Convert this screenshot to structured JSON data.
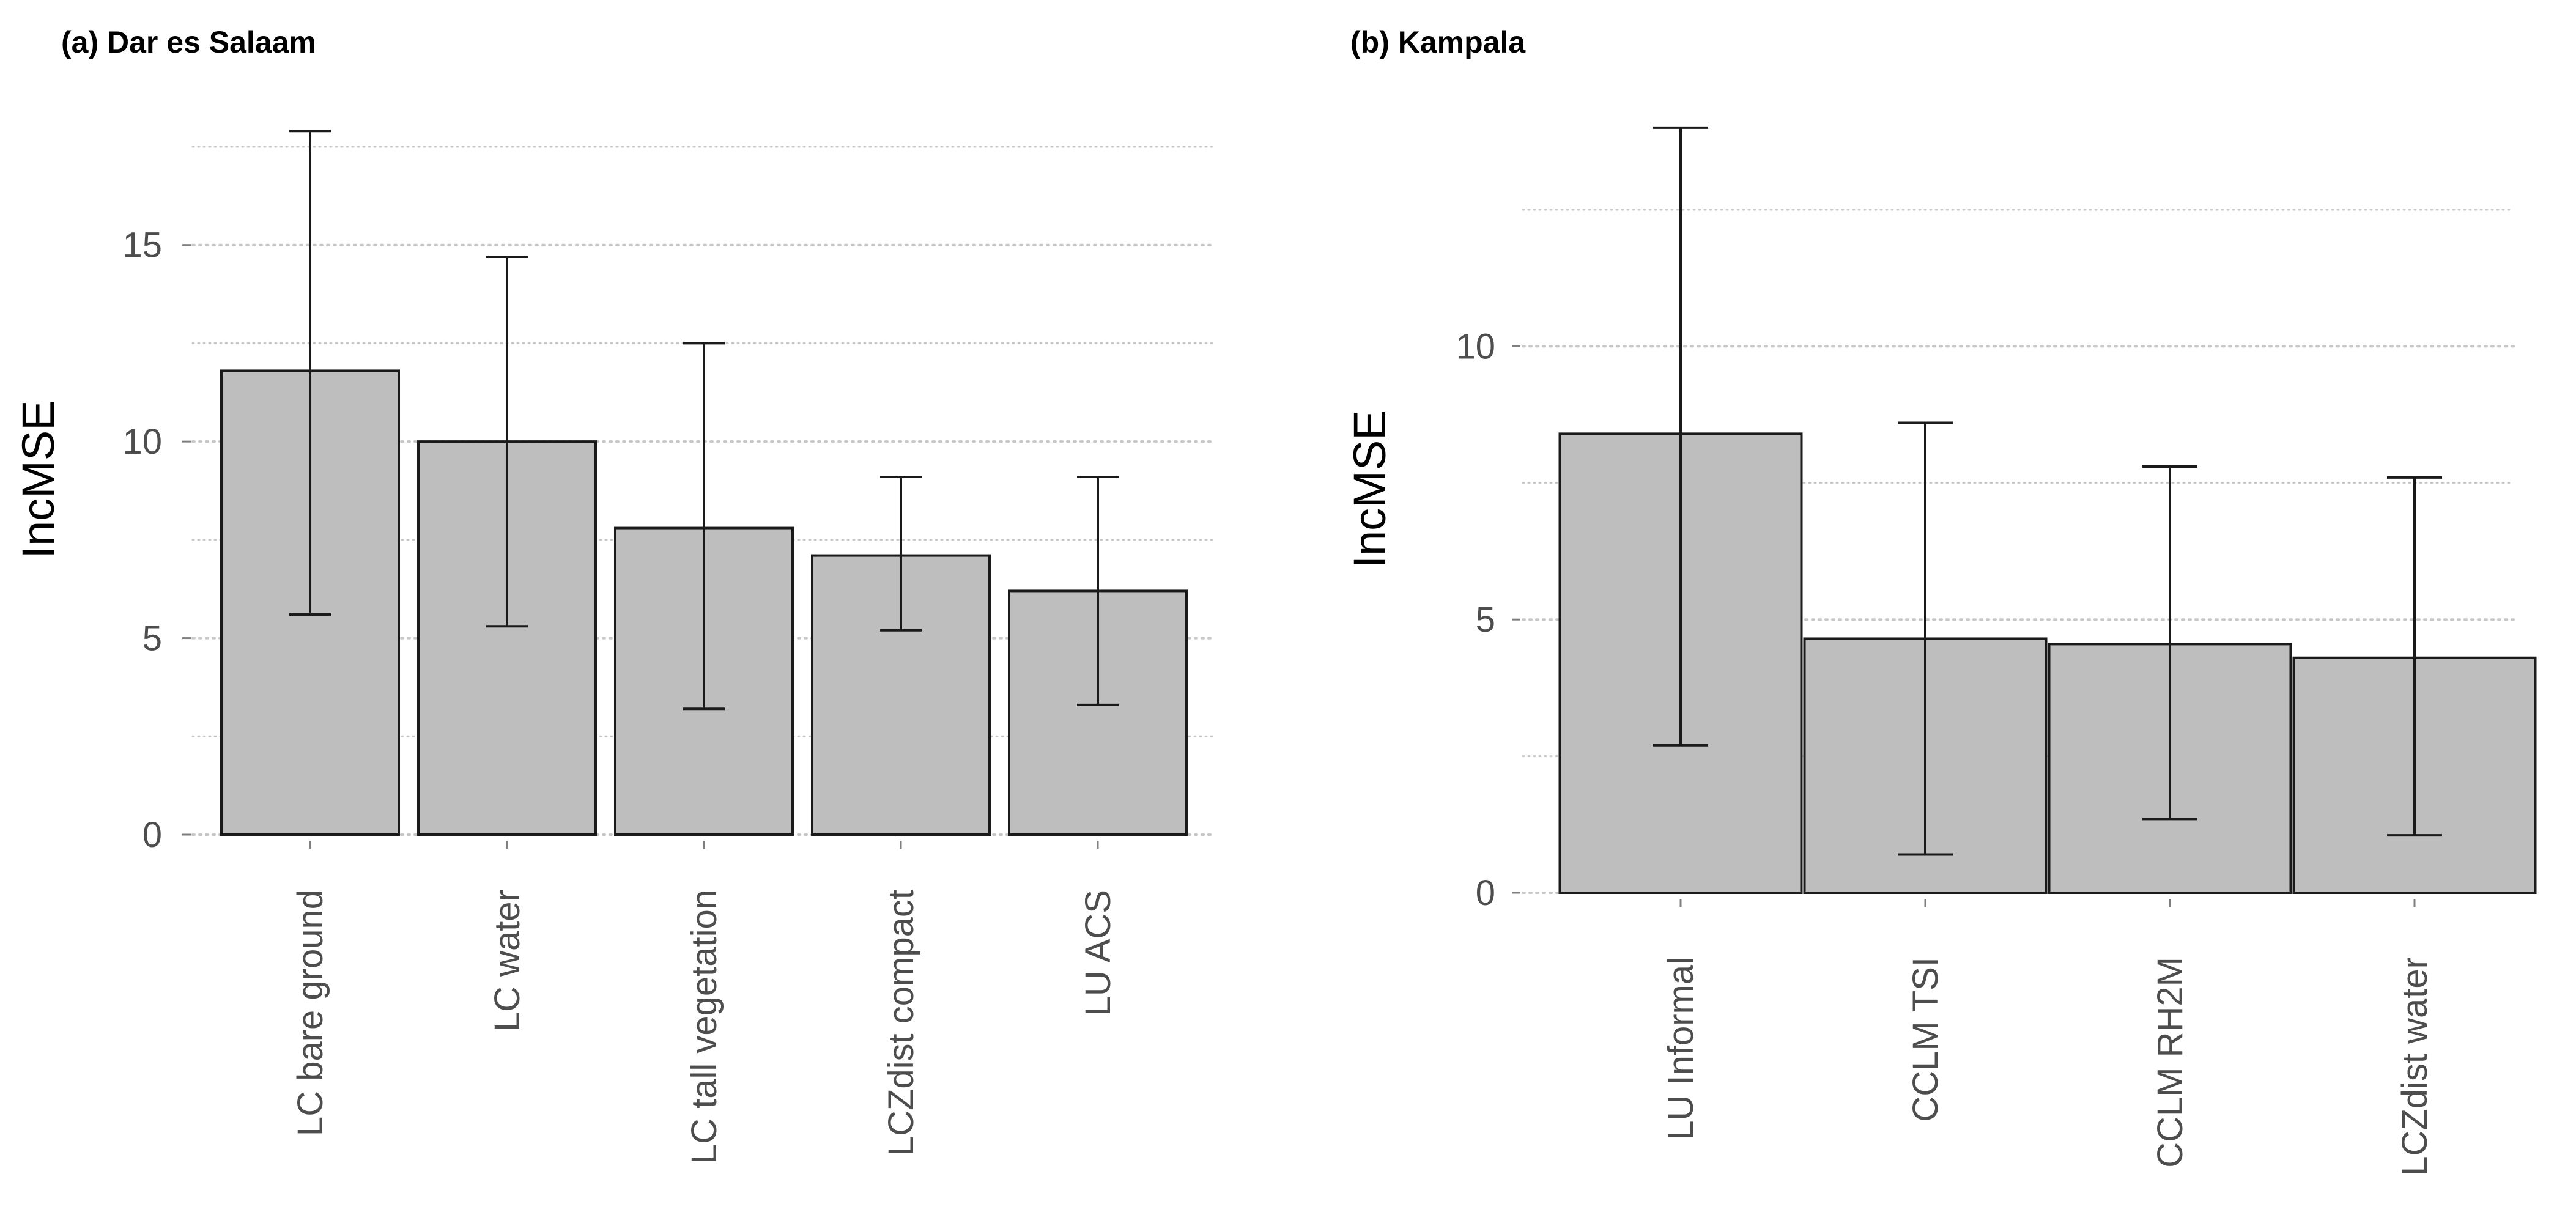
{
  "colors": {
    "bar_fill": "#bebebe",
    "bar_stroke": "#1a1a1a",
    "grid": "#c8c8c8",
    "tick_text": "#4d4d4d",
    "error_bar": "#1a1a1a"
  },
  "chart_data": [
    {
      "type": "bar",
      "title": "(a) Dar es Salaam",
      "xlabel": "",
      "ylabel": "IncMSE",
      "grid": true,
      "categories": [
        "LC bare ground",
        "LC water",
        "LC tall vegetation",
        "LCZdist compact",
        "LU ACS"
      ],
      "values": [
        11.8,
        10.0,
        7.8,
        7.1,
        6.2
      ],
      "error_low": [
        5.6,
        5.3,
        3.2,
        5.2,
        3.3
      ],
      "error_high": [
        17.9,
        14.7,
        12.5,
        9.1,
        9.1
      ],
      "ylim": [
        0,
        18.2
      ],
      "yticks": [
        0,
        5,
        10,
        15
      ],
      "ytick_labels": [
        "0",
        "5",
        "10",
        "15"
      ],
      "minor_grid": [
        2.5,
        7.5,
        12.5,
        17.5
      ]
    },
    {
      "type": "bar",
      "title": "(b) Kampala",
      "xlabel": "",
      "ylabel": "IncMSE",
      "grid": true,
      "categories": [
        "LU Informal",
        "CCLM TSI",
        "CCLM RH2M",
        "LCZdist water"
      ],
      "values": [
        8.4,
        4.65,
        4.55,
        4.3
      ],
      "error_low": [
        2.7,
        0.7,
        1.35,
        1.05
      ],
      "error_high": [
        14.0,
        8.6,
        7.8,
        7.6
      ],
      "ylim": [
        0,
        14.1
      ],
      "yticks": [
        0,
        5,
        10
      ],
      "ytick_labels": [
        "0",
        "5",
        "10"
      ],
      "minor_grid": [
        2.5,
        7.5,
        12.5
      ]
    }
  ]
}
